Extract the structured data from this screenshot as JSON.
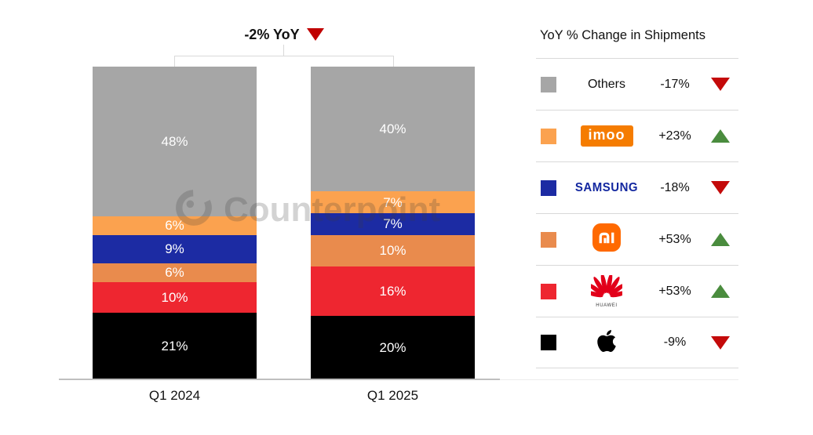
{
  "watermark": {
    "text": "Counterpoint"
  },
  "chart_data": {
    "type": "bar",
    "subtype": "stacked-100-percent",
    "title": "-2% YoY",
    "title_direction": "down",
    "categories": [
      "Q1 2024",
      "Q1 2025"
    ],
    "unit": "%",
    "stack_order": "top-to-bottom",
    "legend_position": "right",
    "series": [
      {
        "name": "Others",
        "color": "#a6a6a6",
        "values": [
          48,
          40
        ]
      },
      {
        "name": "imoo",
        "color": "#fba24f",
        "values": [
          6,
          7
        ]
      },
      {
        "name": "Samsung",
        "color": "#1c2ba3",
        "values": [
          9,
          7
        ]
      },
      {
        "name": "Xiaomi",
        "color": "#e98b4d",
        "values": [
          6,
          10
        ]
      },
      {
        "name": "Huawei",
        "color": "#ee2630",
        "values": [
          10,
          16
        ]
      },
      {
        "name": "Apple",
        "color": "#000000",
        "values": [
          21,
          20
        ]
      }
    ]
  },
  "legend": {
    "header": "YoY % Change in Shipments",
    "rows": [
      {
        "brand": "Others",
        "label": "Others",
        "color": "#a6a6a6",
        "change": "-17%",
        "direction": "down"
      },
      {
        "brand": "imoo",
        "label": "imoo",
        "color": "#fba24f",
        "change": "+23%",
        "direction": "up"
      },
      {
        "brand": "Samsung",
        "label": "SAMSUNG",
        "color": "#1c2ba3",
        "change": "-18%",
        "direction": "down"
      },
      {
        "brand": "Xiaomi",
        "label": "mi",
        "color": "#e98b4d",
        "change": "+53%",
        "direction": "up"
      },
      {
        "brand": "Huawei",
        "label": "HUAWEI",
        "color": "#ee2630",
        "change": "+53%",
        "direction": "up"
      },
      {
        "brand": "Apple",
        "label": "",
        "color": "#000000",
        "change": "-9%",
        "direction": "down"
      }
    ]
  },
  "colors": {
    "up_triangle": "#4a8c3e",
    "down_triangle": "#c40a0a",
    "title_triangle": "#c00000",
    "axis": "#bfbfbf",
    "bracket": "#d9d9d9",
    "imoo_logo_bg": "#f57c00",
    "xiaomi_logo": "#ff6900",
    "samsung_wordmark": "#1428a0",
    "huawei_logo": "#e2001a"
  }
}
